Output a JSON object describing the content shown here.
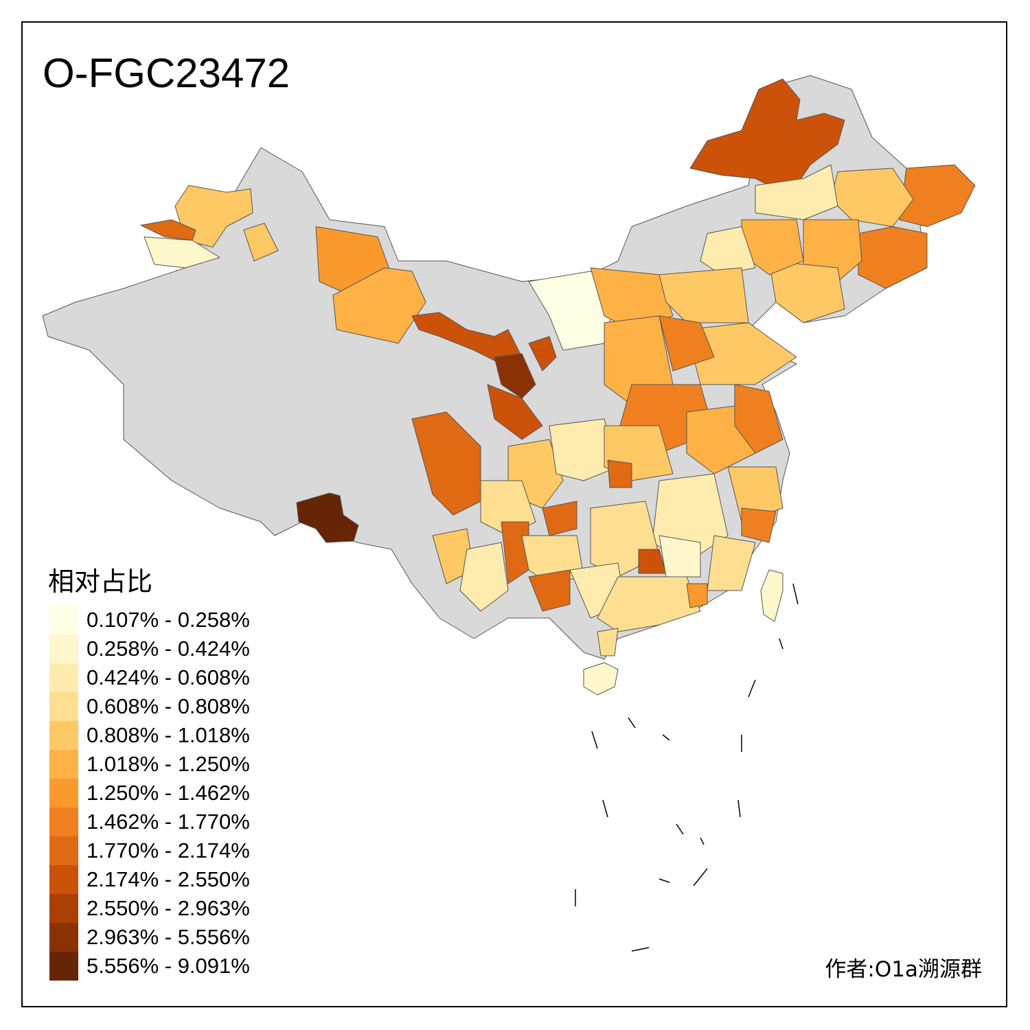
{
  "title": "O-FGC23472",
  "legend": {
    "title": "相对占比",
    "items": [
      {
        "label": "0.107% - 0.258%",
        "color": "#FFFFE5"
      },
      {
        "label": "0.258% - 0.424%",
        "color": "#FFF7CC"
      },
      {
        "label": "0.424% - 0.608%",
        "color": "#FEEBAE"
      },
      {
        "label": "0.608% - 0.808%",
        "color": "#FEDF91"
      },
      {
        "label": "0.808% - 1.018%",
        "color": "#FEC864"
      },
      {
        "label": "1.018% - 1.250%",
        "color": "#FEB245"
      },
      {
        "label": "1.250% - 1.462%",
        "color": "#FB9A2C"
      },
      {
        "label": "1.462% - 1.770%",
        "color": "#F0801F"
      },
      {
        "label": "1.770% - 2.174%",
        "color": "#E06914"
      },
      {
        "label": "2.174% - 2.550%",
        "color": "#CC520A"
      },
      {
        "label": "2.550% - 2.963%",
        "color": "#AA3F04"
      },
      {
        "label": "2.963% - 5.556%",
        "color": "#8B3205"
      },
      {
        "label": "5.556% - 9.091%",
        "color": "#662506"
      }
    ]
  },
  "no_data_color": "#D9D9D9",
  "author": "作者:O1a溯源群"
}
